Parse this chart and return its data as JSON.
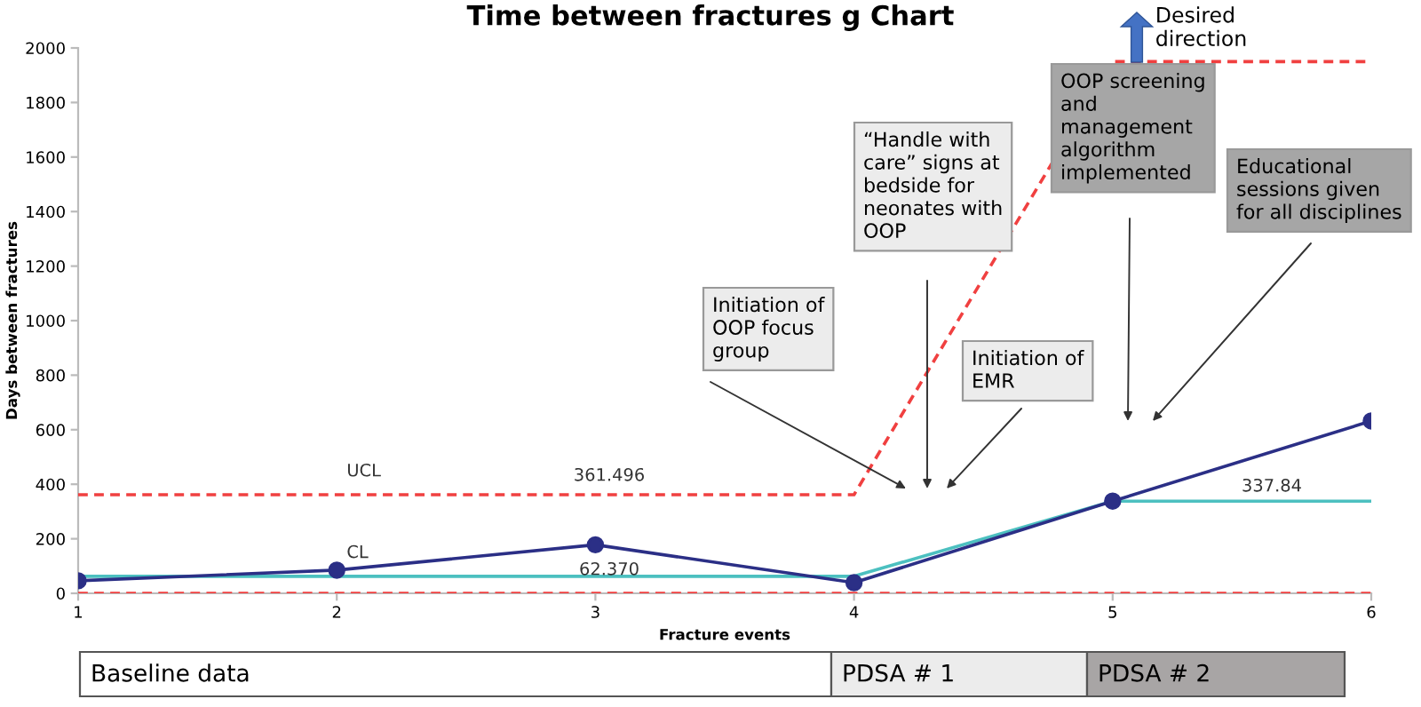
{
  "chart_data": {
    "type": "line",
    "title": "Time between fractures g Chart",
    "xlabel": "Fracture events",
    "ylabel": "Days between fractures",
    "x": [
      1,
      2,
      3,
      4,
      5,
      6
    ],
    "series": [
      {
        "color": "#2b2f86",
        "values": [
          46,
          85,
          178,
          39,
          338,
          632
        ],
        "marker": "circle"
      },
      {
        "name": "CL",
        "color": "#4cc0c0",
        "x": [
          1,
          4,
          5,
          6
        ],
        "values": [
          62.37,
          62.37,
          337.84,
          337.84
        ],
        "marker": "none"
      },
      {
        "name": "UCL",
        "color": "#f04040",
        "x": [
          1,
          4,
          5,
          6
        ],
        "values": [
          361.496,
          361.496,
          1950,
          1950
        ],
        "marker": "none",
        "line_style": "dashed"
      },
      {
        "color": "#f04040",
        "x": [
          1,
          6
        ],
        "values": [
          0,
          0
        ],
        "marker": "none",
        "line_style": "dashed"
      }
    ],
    "xlim": [
      1,
      6
    ],
    "xticks": [
      1,
      2,
      3,
      4,
      5,
      6
    ],
    "ylim": [
      0,
      2000
    ],
    "yticks": [
      0,
      200,
      400,
      600,
      800,
      1000,
      1200,
      1400,
      1600,
      1800,
      2000
    ],
    "grid": false,
    "legend": false,
    "annotations": [
      "Initiation of\nOOP focus\ngroup",
      "“Handle with\ncare” signs at\nbedside for\nneonates with\nOOP",
      "Initiation of\nEMR",
      "OOP screening\nand\nmanagement\nalgorithm\nimplemented",
      "Educational\nsessions given\nfor all disciplines",
      "361.496",
      "62.370",
      "337.84",
      "Baseline data",
      "PDSA # 1",
      "PDSA # 2",
      "Desired\ndirection"
    ]
  }
}
